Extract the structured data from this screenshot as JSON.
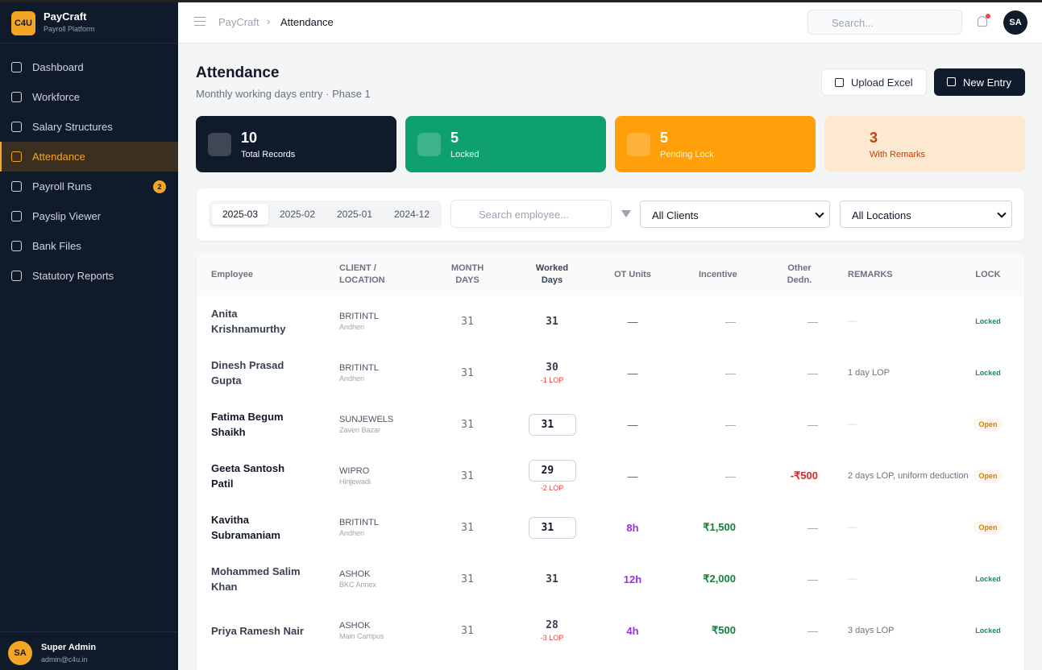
{
  "sidebar": {
    "logo": "C4U",
    "app": "PayCraft",
    "tagline": "Payroll Platform",
    "nav": [
      {
        "label": "Dashboard"
      },
      {
        "label": "Workforce"
      },
      {
        "label": "Salary Structures"
      },
      {
        "label": "Attendance",
        "active": true
      },
      {
        "label": "Payroll Runs",
        "badge": 2
      },
      {
        "label": "Payslip Viewer"
      },
      {
        "label": "Bank Files"
      },
      {
        "label": "Statutory Reports"
      }
    ],
    "user": {
      "initials": "SA",
      "name": "Super Admin",
      "email": "admin@c4u.in"
    }
  },
  "topbar": {
    "breadcrumb": [
      "PayCraft",
      "Attendance"
    ],
    "search_placeholder": "Search...",
    "avatar": "SA"
  },
  "header": {
    "title": "Attendance",
    "subtitle": "Monthly working days entry · Phase 1",
    "buttons": [
      "Upload Excel",
      "New Entry"
    ]
  },
  "stats": [
    {
      "value": 10,
      "label": "Total Records"
    },
    {
      "value": 5,
      "label": "Locked"
    },
    {
      "value": 5,
      "label": "Pending Lock"
    },
    {
      "value": 3,
      "label": "With Remarks"
    }
  ],
  "filters": {
    "months": [
      "2025-03",
      "2025-02",
      "2025-01",
      "2024-12"
    ],
    "search_placeholder": "Search employee...",
    "client": "All Clients",
    "location": "All Locations"
  },
  "table": {
    "columns": [
      "Employee",
      "CLIENT / LOCATION",
      "MONTH DAYS",
      "Worked Days",
      "OT Units",
      "Incentive",
      "Other Dedn.",
      "REMARKS",
      "LOCK"
    ],
    "rows": [
      {
        "name": "Anita Krishnamurthy",
        "client": "BRITINTL",
        "location": "Andheri",
        "month_days": 31,
        "worked_days": 31,
        "ot": "—",
        "incentive": "—",
        "dedn": "—",
        "remarks": "—",
        "lock": "Locked"
      },
      {
        "name": "Dinesh Prasad Gupta",
        "client": "BRITINTL",
        "location": "Andheri",
        "month_days": 31,
        "worked_days": 30,
        "lop": "-1 LOP",
        "ot": "—",
        "incentive": "—",
        "dedn": "—",
        "remarks": "1 day LOP",
        "lock": "Locked"
      },
      {
        "name": "Fatima Begum Shaikh",
        "client": "SUNJEWELS",
        "location": "Zaveri Bazar",
        "month_days": 31,
        "worked_days": 31,
        "ot": "—",
        "incentive": "—",
        "dedn": "—",
        "remarks": "—",
        "lock": "Open"
      },
      {
        "name": "Geeta Santosh Patil",
        "client": "WIPRO",
        "location": "Hinjewadi",
        "month_days": 31,
        "worked_days": 29,
        "lop": "-2 LOP",
        "ot": "—",
        "incentive": "—",
        "dedn": "-₹500",
        "remarks": "2 days LOP, uniform deduction",
        "lock": "Open"
      },
      {
        "name": "Kavitha Subramaniam",
        "client": "BRITINTL",
        "location": "Andheri",
        "month_days": 31,
        "worked_days": 31,
        "ot": "8h",
        "incentive": "₹1,500",
        "dedn": "—",
        "remarks": "—",
        "lock": "Open"
      },
      {
        "name": "Mohammed Salim Khan",
        "client": "ASHOK",
        "location": "BKC Annex",
        "month_days": 31,
        "worked_days": 31,
        "ot": "12h",
        "incentive": "₹2,000",
        "dedn": "—",
        "remarks": "—",
        "lock": "Locked"
      },
      {
        "name": "Priya Ramesh Nair",
        "client": "ASHOK",
        "location": "Main Campus",
        "month_days": 31,
        "worked_days": 28,
        "lop": "-3 LOP",
        "ot": "4h",
        "incentive": "₹500",
        "dedn": "—",
        "remarks": "3 days LOP",
        "lock": "Locked"
      }
    ]
  }
}
